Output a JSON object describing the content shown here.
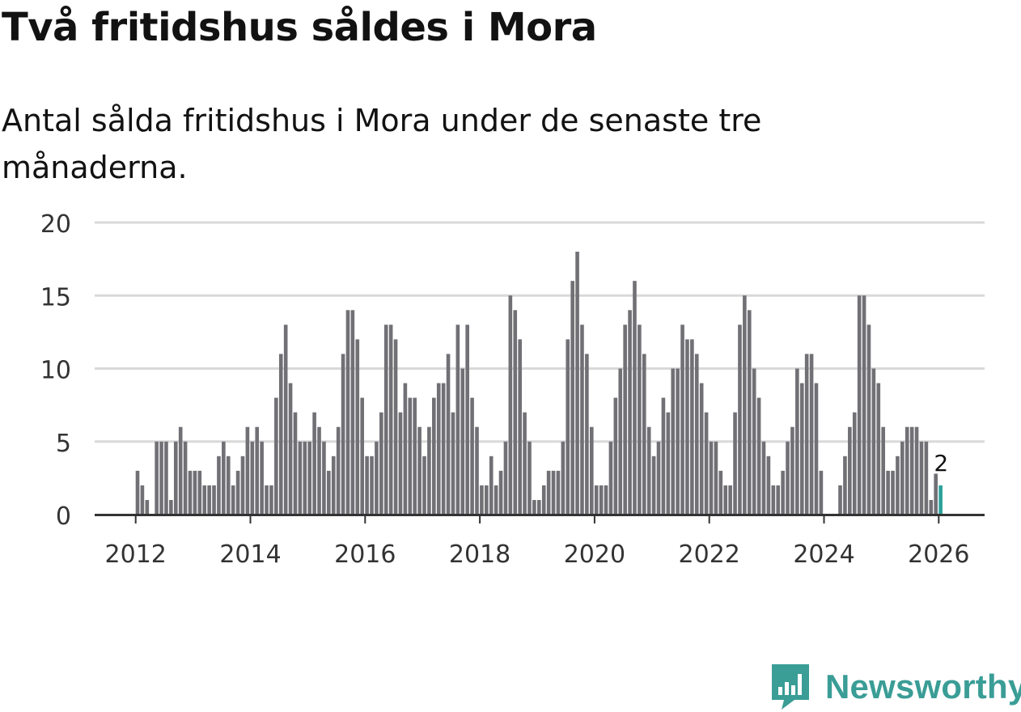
{
  "title": "Två fritidshus såldes i Mora",
  "subtitle": "Antal sålda fritidshus i Mora under de senaste tre månaderna.",
  "brand": {
    "name": "Newsworthy",
    "icon": "newsworthy-logo-icon",
    "color": "#3a9d96"
  },
  "colors": {
    "bar": "#717075",
    "highlight": "#2ca19a",
    "grid": "#d9d9d9",
    "axis": "#333333",
    "text": "#333333"
  },
  "chart_data": {
    "type": "bar",
    "title": "Två fritidshus såldes i Mora",
    "xlabel": "",
    "ylabel": "",
    "ylim": [
      0,
      20
    ],
    "xlim": [
      2011,
      2026.75
    ],
    "y_ticks": [
      0,
      5,
      10,
      15,
      20
    ],
    "x_ticks": [
      2012,
      2014,
      2016,
      2018,
      2020,
      2022,
      2024,
      2026
    ],
    "grid": true,
    "start": {
      "year": 2012,
      "month": 1
    },
    "values": [
      3,
      2,
      1,
      0,
      5,
      5,
      5,
      1,
      5,
      6,
      5,
      3,
      3,
      3,
      2,
      2,
      2,
      4,
      5,
      4,
      2,
      3,
      4,
      6,
      5,
      6,
      5,
      2,
      2,
      8,
      11,
      13,
      9,
      7,
      5,
      5,
      5,
      7,
      6,
      5,
      3,
      4,
      6,
      11,
      14,
      14,
      12,
      8,
      4,
      4,
      5,
      7,
      13,
      13,
      12,
      7,
      9,
      8,
      8,
      6,
      4,
      6,
      8,
      9,
      9,
      11,
      7,
      13,
      10,
      13,
      8,
      6,
      2,
      2,
      4,
      2,
      3,
      5,
      15,
      14,
      12,
      7,
      5,
      1,
      1,
      2,
      3,
      3,
      3,
      5,
      12,
      16,
      18,
      13,
      11,
      6,
      2,
      2,
      2,
      5,
      8,
      10,
      13,
      14,
      16,
      13,
      11,
      6,
      4,
      5,
      8,
      7,
      10,
      10,
      13,
      12,
      12,
      11,
      9,
      7,
      5,
      5,
      3,
      2,
      2,
      7,
      13,
      15,
      14,
      10,
      8,
      5,
      4,
      2,
      2,
      3,
      5,
      6,
      10,
      9,
      11,
      11,
      9,
      3,
      0,
      0,
      0,
      2,
      4,
      6,
      7,
      15,
      15,
      13,
      10,
      9,
      6,
      3,
      3,
      4,
      5,
      6,
      6,
      6,
      5,
      5,
      1,
      2.8,
      2
    ],
    "annotation": {
      "label": "2",
      "value": 2
    }
  }
}
